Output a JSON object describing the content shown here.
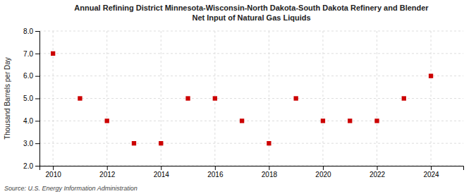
{
  "chart_data": {
    "type": "scatter",
    "title": "Annual Refining District Minnesota-Wisconsin-North Dakota-South Dakota Refinery and Blender\nNet Input of Natural Gas Liquids",
    "ylabel": "Thousand Barrels per Day",
    "annotations": [
      "Source: U.S. Energy Information Administration"
    ],
    "x": [
      2010,
      2011,
      2012,
      2013,
      2014,
      2015,
      2016,
      2017,
      2018,
      2019,
      2020,
      2021,
      2022,
      2023,
      2024
    ],
    "values": [
      7.0,
      5.0,
      4.0,
      3.0,
      3.0,
      5.0,
      5.0,
      4.0,
      3.0,
      5.0,
      4.0,
      4.0,
      4.0,
      5.0,
      6.0
    ],
    "color": "#cc0000",
    "marker": "square",
    "xlim": [
      2009.5,
      2025.2
    ],
    "ylim": [
      2.0,
      8.0
    ],
    "xticks": [
      2010,
      2012,
      2014,
      2016,
      2018,
      2020,
      2022,
      2024
    ],
    "yticks": [
      {
        "value": 2.0,
        "label": "2.0"
      },
      {
        "value": 3.0,
        "label": "3.0"
      },
      {
        "value": 4.0,
        "label": "4.0"
      },
      {
        "value": 5.0,
        "label": "5.0"
      },
      {
        "value": 6.0,
        "label": "6.0"
      },
      {
        "value": 7.0,
        "label": "7.0"
      },
      {
        "value": 8.0,
        "label": "8.0"
      }
    ],
    "grid": true
  }
}
